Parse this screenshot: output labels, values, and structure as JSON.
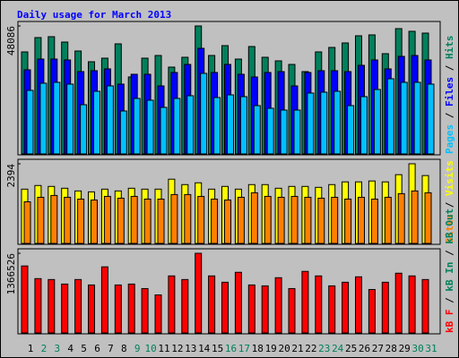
{
  "chart_data": [
    {
      "type": "bar",
      "title": "Daily usage for March 2013",
      "ylim": [
        0,
        48086
      ],
      "yticks": [
        48086
      ],
      "legend_separator": " / ",
      "series": [
        {
          "name": "Hits",
          "color": "#00805c",
          "values": [
            38338,
            43719,
            44055,
            42038,
            38675,
            34639,
            35984,
            41365,
            28922,
            35984,
            36993,
            32621,
            36320,
            48086,
            36993,
            40692,
            35648,
            40356,
            36320,
            34975,
            33630,
            30940,
            38338,
            40020,
            41701,
            44392,
            44728,
            37666,
            47082,
            46073,
            45401
          ]
        },
        {
          "name": "Files",
          "color": "#0000ff",
          "values": [
            31612,
            35648,
            35648,
            35312,
            30940,
            31276,
            31949,
            26231,
            29931,
            29931,
            25559,
            30603,
            33630,
            39683,
            30603,
            33630,
            29931,
            28922,
            30603,
            30940,
            25559,
            30603,
            31276,
            31276,
            30940,
            33294,
            35312,
            31949,
            36657,
            36993,
            35312
          ]
        },
        {
          "name": "Pages",
          "color": "#00c0ff",
          "values": [
            23877,
            26568,
            26904,
            26231,
            18497,
            23541,
            25559,
            16142,
            20851,
            20178,
            17488,
            20851,
            21860,
            30267,
            21187,
            22196,
            21523,
            18160,
            17151,
            16479,
            16479,
            22868,
            23205,
            23541,
            18160,
            21523,
            24214,
            28249,
            26904,
            26904,
            26231
          ]
        }
      ]
    },
    {
      "type": "bar",
      "ylim": [
        0,
        2394
      ],
      "yticks": [
        2394
      ],
      "legend_separator": " / ",
      "series": [
        {
          "name": "Visits",
          "color": "#ffff00",
          "values": [
            1632,
            1741,
            1714,
            1659,
            1578,
            1550,
            1632,
            1578,
            1659,
            1632,
            1632,
            1931,
            1768,
            1823,
            1632,
            1714,
            1632,
            1768,
            1768,
            1659,
            1714,
            1714,
            1686,
            1768,
            1850,
            1850,
            1877,
            1850,
            2067,
            2394,
            2040
          ]
        },
        {
          "name": "Sites",
          "color": "#ff8000",
          "values": [
            1251,
            1387,
            1442,
            1387,
            1333,
            1306,
            1414,
            1360,
            1414,
            1333,
            1333,
            1469,
            1469,
            1414,
            1333,
            1306,
            1387,
            1523,
            1414,
            1387,
            1414,
            1387,
            1360,
            1387,
            1333,
            1387,
            1333,
            1387,
            1496,
            1578,
            1523
          ]
        }
      ]
    },
    {
      "type": "bar",
      "ylim": [
        0,
        1366526
      ],
      "yticks": [
        1366526
      ],
      "legend_separator": " / ",
      "categories": [
        "1",
        "2",
        "3",
        "4",
        "5",
        "6",
        "7",
        "8",
        "9",
        "10",
        "11",
        "12",
        "13",
        "14",
        "15",
        "16",
        "17",
        "18",
        "19",
        "20",
        "21",
        "22",
        "23",
        "24",
        "25",
        "26",
        "27",
        "28",
        "29",
        "30",
        "31"
      ],
      "category_colors": [
        "#000000",
        "#00805c",
        "#00805c",
        "#000000",
        "#000000",
        "#000000",
        "#000000",
        "#000000",
        "#00805c",
        "#00805c",
        "#000000",
        "#000000",
        "#000000",
        "#000000",
        "#000000",
        "#00805c",
        "#00805c",
        "#000000",
        "#000000",
        "#000000",
        "#000000",
        "#000000",
        "#00805c",
        "#00805c",
        "#000000",
        "#000000",
        "#000000",
        "#000000",
        "#000000",
        "#00805c",
        "#00805c"
      ],
      "series": [
        {
          "name": "kB F",
          "color": "#ff0000",
          "values": [
            1149146,
            931740,
            916211,
            838566,
            916211,
            823037,
            1133617,
            823037,
            838566,
            760921,
            652218,
            978327,
            916211,
            1366526,
            978327,
            869624,
            1040443,
            823037,
            807508,
            947269,
            760921,
            1055972,
            978327,
            807508,
            869624,
            962798,
            745392,
            869624,
            1024914,
            978327,
            916211
          ]
        }
      ],
      "extra_legend": [
        {
          "name": "kB In",
          "color": "#00805c"
        },
        {
          "name": "kB Out",
          "color": "#00805c"
        }
      ]
    }
  ]
}
